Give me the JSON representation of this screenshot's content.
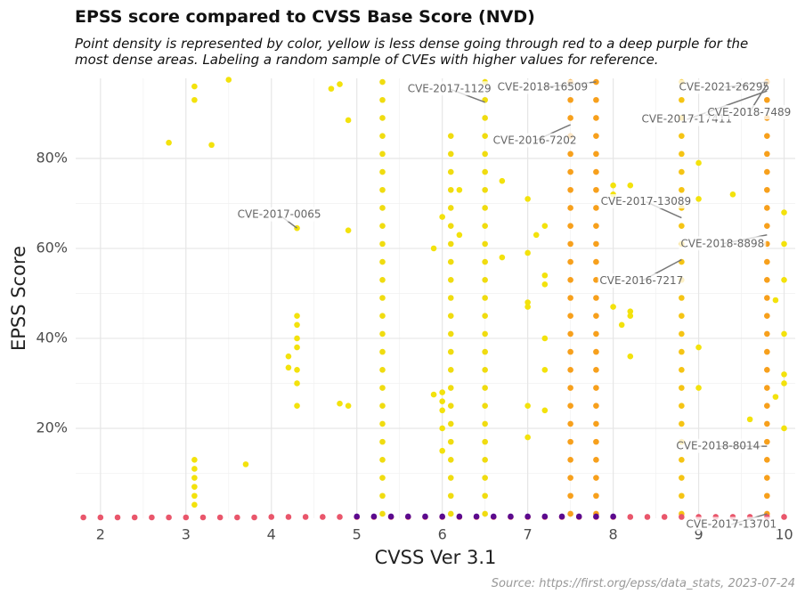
{
  "chart_data": {
    "type": "scatter",
    "title": "EPSS score compared to CVSS Base Score (NVD)",
    "subtitle": "Point density is represented by color, yellow is less dense going through red to a deep purple for the most dense areas. Labeling a random sample of CVEs with higher values for reference.",
    "caption": "Source: https://first.org/epss/data_stats, 2023-07-24",
    "x_label": "CVSS Ver 3.1",
    "y_label": "EPSS Score",
    "xlim": [
      1.71,
      10.13
    ],
    "xticks": [
      2,
      3,
      4,
      5,
      6,
      7,
      8,
      9,
      10
    ],
    "ylim": [
      0,
      97.8
    ],
    "yticks": [
      {
        "value": 20,
        "label": "20%"
      },
      {
        "value": 40,
        "label": "40%"
      },
      {
        "value": 60,
        "label": "60%"
      },
      {
        "value": 80,
        "label": "80%"
      }
    ],
    "grid": true,
    "series": [
      {
        "color": "#f3e20c",
        "x": [
          3.1,
          3.1,
          3.1,
          3.1,
          3.1,
          3.1,
          3.1,
          3.1,
          2.8,
          3.3,
          4.3,
          4.3,
          4.3,
          4.3,
          4.3,
          4.3,
          4.3,
          4.3,
          4.2,
          4.2,
          4.9,
          4.9,
          4.8,
          4.9,
          4.7,
          4.8,
          3.7,
          3.5,
          6.0,
          6.0,
          6.0,
          6.0,
          6.0,
          6.0,
          5.9,
          5.9,
          6.2,
          6.2,
          6.7,
          6.7,
          7.0,
          7.0,
          7.0,
          7.0,
          7.0,
          7.0,
          7.1,
          7.2,
          7.2,
          7.2,
          7.2,
          7.2,
          7.2,
          8.0,
          8.0,
          8.0,
          8.2,
          8.2,
          8.2,
          8.2,
          8.1,
          9.0,
          9.0,
          9.0,
          9.0,
          9.4,
          9.6,
          10.0,
          10.0,
          10.0,
          10.0,
          10.0,
          10.0,
          10.0,
          9.9,
          9.9
        ],
        "y": [
          96,
          93,
          13,
          11,
          9,
          7,
          5,
          3,
          83.5,
          83,
          64.5,
          45,
          43,
          40,
          38,
          33,
          30,
          25,
          36,
          33.5,
          64,
          88.5,
          25.5,
          25,
          95.5,
          96.5,
          12,
          97.5,
          67,
          28,
          26,
          24,
          20,
          15,
          60,
          27.5,
          73,
          63,
          75,
          58,
          71,
          59,
          48,
          47,
          25,
          18,
          63,
          65,
          54,
          52,
          40,
          33,
          24,
          72,
          74,
          47,
          74,
          46,
          45,
          36,
          43,
          79,
          71,
          29,
          38,
          72,
          22,
          68,
          61,
          53,
          41,
          32,
          30,
          20,
          48.5,
          27
        ]
      },
      {
        "color": "#f0dc10",
        "x": [
          5.3,
          5.3,
          5.3,
          5.3,
          5.3,
          5.3,
          5.3,
          5.3,
          5.3,
          5.3,
          5.3,
          5.3,
          5.3,
          5.3,
          5.3,
          5.3,
          5.3,
          5.3,
          5.3,
          5.3,
          5.3,
          5.3,
          5.3,
          5.3,
          5.3,
          6.5,
          6.5,
          6.5,
          6.5,
          6.5,
          6.5,
          6.5,
          6.5,
          6.5,
          6.5,
          6.5,
          6.5,
          6.5,
          6.5,
          6.5,
          6.5,
          6.5,
          6.5,
          6.5,
          6.5,
          6.5,
          6.5,
          6.5,
          6.5,
          6.5,
          6.1,
          6.1,
          6.1,
          6.1,
          6.1,
          6.1,
          6.1,
          6.1,
          6.1,
          6.1,
          6.1,
          6.1,
          6.1,
          6.1,
          6.1,
          6.1,
          6.1,
          6.1,
          6.1,
          6.1,
          6.1,
          6.1
        ],
        "y": [
          1,
          5,
          9,
          13,
          17,
          21,
          25,
          29,
          33,
          37,
          41,
          45,
          49,
          53,
          57,
          61,
          65,
          69,
          73,
          77,
          81,
          85,
          89,
          93,
          97,
          1,
          5,
          9,
          13,
          17,
          21,
          25,
          29,
          33,
          37,
          41,
          45,
          49,
          53,
          57,
          61,
          65,
          69,
          73,
          77,
          81,
          85,
          89,
          93,
          97,
          1,
          5,
          9,
          13,
          17,
          21,
          25,
          29,
          33,
          37,
          41,
          45,
          49,
          53,
          57,
          61,
          65,
          69,
          73,
          77,
          81,
          85
        ]
      },
      {
        "color": "#f5c414",
        "x": [
          8.8,
          8.8,
          8.8,
          8.8,
          8.8,
          8.8,
          8.8,
          8.8,
          8.8,
          8.8,
          8.8,
          8.8,
          8.8,
          8.8,
          8.8,
          8.8,
          8.8,
          8.8,
          8.8,
          8.8,
          8.8,
          8.8,
          8.8,
          8.8,
          8.8
        ],
        "y": [
          1,
          5,
          9,
          13,
          17,
          21,
          25,
          29,
          33,
          37,
          41,
          45,
          49,
          53,
          57,
          61,
          65,
          69,
          73,
          77,
          81,
          85,
          89,
          93,
          97
        ]
      },
      {
        "color": "#f7a01c",
        "x": [
          7.5,
          7.5,
          7.5,
          7.5,
          7.5,
          7.5,
          7.5,
          7.5,
          7.5,
          7.5,
          7.5,
          7.5,
          7.5,
          7.5,
          7.5,
          7.5,
          7.5,
          7.5,
          7.5,
          7.5,
          7.5,
          7.5,
          7.5,
          7.5,
          7.5,
          7.8,
          7.8,
          7.8,
          7.8,
          7.8,
          7.8,
          7.8,
          7.8,
          7.8,
          7.8,
          7.8,
          7.8,
          7.8,
          7.8,
          7.8,
          7.8,
          7.8,
          7.8,
          7.8,
          7.8,
          7.8,
          7.8,
          7.8,
          7.8,
          7.8,
          9.8,
          9.8,
          9.8,
          9.8,
          9.8,
          9.8,
          9.8,
          9.8,
          9.8,
          9.8,
          9.8,
          9.8,
          9.8,
          9.8,
          9.8,
          9.8,
          9.8,
          9.8,
          9.8,
          9.8,
          9.8,
          9.8,
          9.8,
          9.8,
          9.8
        ],
        "y": [
          1,
          5,
          9,
          13,
          17,
          21,
          25,
          29,
          33,
          37,
          41,
          45,
          49,
          53,
          57,
          61,
          65,
          69,
          73,
          77,
          81,
          85,
          89,
          93,
          97,
          1,
          5,
          9,
          13,
          17,
          21,
          25,
          29,
          33,
          37,
          41,
          45,
          49,
          53,
          57,
          61,
          65,
          69,
          73,
          77,
          81,
          85,
          89,
          93,
          97,
          1,
          5,
          9,
          13,
          17,
          21,
          25,
          29,
          33,
          37,
          41,
          45,
          49,
          53,
          57,
          61,
          65,
          69,
          73,
          77,
          81,
          85,
          89,
          93,
          97
        ]
      },
      {
        "color": "#e9566b",
        "x": [
          1.8,
          2.0,
          2.2,
          2.4,
          2.6,
          2.8,
          3.0,
          3.2,
          3.4,
          3.6,
          3.8,
          4.0,
          4.2,
          4.4,
          4.6,
          4.8,
          5.0,
          5.2,
          5.4,
          5.6,
          5.8,
          6.0,
          6.2,
          6.4,
          6.6,
          6.8,
          7.0,
          7.2,
          7.4,
          7.6,
          7.8,
          8.0,
          8.2,
          8.4,
          8.6,
          8.8,
          9.0,
          9.2,
          9.4,
          9.6,
          9.8,
          10.0
        ],
        "y": [
          0.2,
          0.2,
          0.2,
          0.2,
          0.2,
          0.2,
          0.2,
          0.2,
          0.2,
          0.2,
          0.2,
          0.3,
          0.3,
          0.3,
          0.3,
          0.3,
          0.3,
          0.3,
          0.3,
          0.3,
          0.3,
          0.3,
          0.3,
          0.3,
          0.3,
          0.3,
          0.3,
          0.3,
          0.3,
          0.3,
          0.3,
          0.3,
          0.3,
          0.3,
          0.3,
          0.3,
          0.3,
          0.3,
          0.3,
          0.3,
          0.3,
          0.3
        ]
      },
      {
        "color": "#5b0a8e",
        "x": [
          5.0,
          5.2,
          5.4,
          5.6,
          5.8,
          6.0,
          6.2,
          6.4,
          6.6,
          6.8,
          7.0,
          7.2,
          7.4,
          7.6,
          7.8,
          8.0
        ],
        "y": [
          0.4,
          0.4,
          0.4,
          0.4,
          0.4,
          0.4,
          0.4,
          0.4,
          0.4,
          0.4,
          0.4,
          0.4,
          0.4,
          0.4,
          0.4,
          0.4
        ]
      }
    ],
    "annotations": [
      {
        "text": "CVE-2017-1129",
        "x": 6.5,
        "y": 92.5
      },
      {
        "text": "CVE-2018-16509",
        "x": 7.8,
        "y": 97
      },
      {
        "text": "CVE-2016-7202",
        "x": 7.5,
        "y": 87.5
      },
      {
        "text": "CVE-2021-26295",
        "x": 9.8,
        "y": 97
      },
      {
        "text": "CVE-2017-17411",
        "x": 9.8,
        "y": 95
      },
      {
        "text": "CVE-2018-7489",
        "x": 9.8,
        "y": 96.5
      },
      {
        "text": "CVE-2017-0065",
        "x": 4.3,
        "y": 64.5
      },
      {
        "text": "CVE-2017-13089",
        "x": 8.8,
        "y": 66.8
      },
      {
        "text": "CVE-2018-8898",
        "x": 9.8,
        "y": 63
      },
      {
        "text": "CVE-2016-7217",
        "x": 8.8,
        "y": 57.5
      },
      {
        "text": "CVE-2018-8014",
        "x": 9.8,
        "y": 16
      },
      {
        "text": "CVE-2017-13701",
        "x": 9.8,
        "y": 1
      }
    ]
  }
}
